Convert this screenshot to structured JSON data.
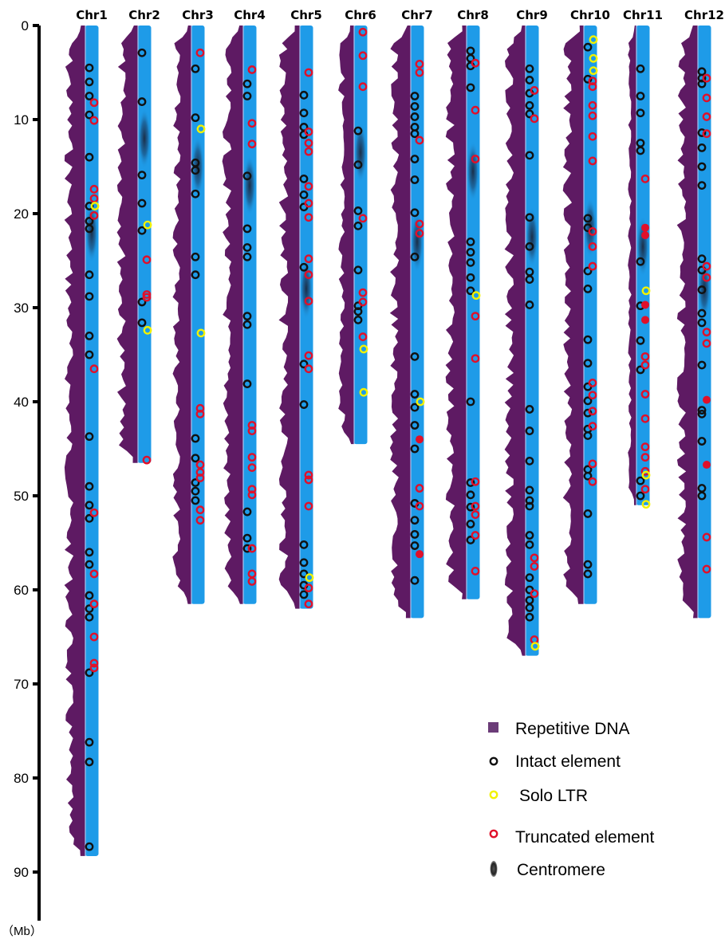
{
  "figure": {
    "axis": {
      "unit": "（Mb）",
      "max": 90,
      "ticks": [
        0,
        10,
        20,
        30,
        40,
        50,
        60,
        70,
        80,
        90
      ]
    },
    "colors": {
      "chromosome": "#1e9be8",
      "repetitive": "#5e1a63",
      "repetitive_legend": "#6b3c78",
      "intact": "#111111",
      "solo": "#f2f200",
      "truncated": "#e0102a",
      "centromere": "#2a2a3a"
    },
    "legend": {
      "repetitive": "Repetitive DNA",
      "intact": "Intact element",
      "solo": "Solo LTR",
      "truncated": "Truncated element",
      "centromere": "Centromere"
    },
    "chromosomes": [
      {
        "name": "Chr1",
        "length_mb": 88.3,
        "centromere_mb": 22.0,
        "rep_max": 1.0,
        "intact": [
          4.5,
          6.0,
          7.5,
          9.5,
          14.0,
          19.2,
          20.8,
          21.6,
          26.5,
          28.8,
          33.0,
          35.0,
          43.7,
          49.0,
          51.0,
          52.4,
          56.0,
          57.3,
          60.6,
          62.0,
          62.9,
          68.8,
          76.2,
          78.3,
          87.3
        ],
        "solo": [
          19.2
        ],
        "truncated": [
          17.4,
          18.4,
          20.2,
          8.2,
          10.1,
          36.5,
          51.8,
          58.3,
          61.5,
          65.0,
          67.8,
          68.3
        ],
        "truncated_filled": []
      },
      {
        "name": "Chr2",
        "length_mb": 46.5,
        "centromere_mb": 12.0,
        "rep_max": 1.0,
        "intact": [
          2.9,
          8.1,
          15.9,
          18.9,
          21.8,
          29.4,
          31.6
        ],
        "solo": [
          21.2,
          32.4
        ],
        "truncated": [
          24.9,
          28.6,
          28.9,
          46.2
        ],
        "truncated_filled": []
      },
      {
        "name": "Chr3",
        "length_mb": 61.5,
        "centromere_mb": 15.0,
        "rep_max": 0.9,
        "intact": [
          4.6,
          9.8,
          14.6,
          15.4,
          17.9,
          24.6,
          26.5,
          43.9,
          46.0,
          48.6,
          49.5,
          50.5
        ],
        "solo": [
          11.0,
          32.7
        ],
        "truncated": [
          2.9,
          40.7,
          41.3,
          46.7,
          47.5,
          48.1,
          51.5,
          52.6
        ],
        "truncated_filled": []
      },
      {
        "name": "Chr4",
        "length_mb": 61.5,
        "centromere_mb": 17.0,
        "rep_max": 1.0,
        "intact": [
          6.2,
          7.5,
          16.0,
          21.6,
          23.6,
          24.6,
          30.9,
          31.8,
          38.1,
          51.7,
          54.5,
          55.6
        ],
        "solo": [],
        "truncated": [
          4.7,
          10.4,
          12.6,
          42.5,
          43.1,
          45.9,
          47.0,
          49.3,
          49.9,
          55.6,
          58.3,
          59.1
        ],
        "truncated_filled": []
      },
      {
        "name": "Chr5",
        "length_mb": 62.0,
        "centromere_mb": 28.0,
        "rep_max": 1.0,
        "intact": [
          7.4,
          9.3,
          10.8,
          11.6,
          16.3,
          18.0,
          19.3,
          25.7,
          36.0,
          40.3,
          55.2,
          57.1,
          58.3,
          59.5,
          60.5
        ],
        "solo": [
          58.7
        ],
        "truncated": [
          5.0,
          11.3,
          12.5,
          13.4,
          17.1,
          18.9,
          20.4,
          24.8,
          26.5,
          29.3,
          35.1,
          36.5,
          47.8,
          48.3,
          51.1,
          59.8,
          61.5
        ],
        "truncated_filled": []
      },
      {
        "name": "Chr6",
        "length_mb": 44.5,
        "centromere_mb": 13.5,
        "rep_max": 0.75,
        "intact": [
          11.2,
          14.8,
          19.7,
          21.3,
          26.0,
          29.8,
          30.4,
          31.3
        ],
        "solo": [
          34.4,
          39.0
        ],
        "truncated": [
          0.7,
          3.2,
          6.5,
          20.5,
          28.4,
          29.4,
          33.1
        ],
        "truncated_filled": []
      },
      {
        "name": "Chr7",
        "length_mb": 63.0,
        "centromere_mb": 23.0,
        "rep_max": 1.0,
        "intact": [
          7.5,
          8.6,
          9.7,
          10.8,
          11.5,
          14.2,
          16.4,
          19.9,
          24.6,
          35.2,
          39.2,
          40.6,
          42.5,
          45.0,
          50.8,
          52.6,
          54.1,
          55.3,
          59.0
        ],
        "solo": [
          40.0
        ],
        "truncated": [
          4.1,
          5.0,
          12.2,
          21.1,
          22.1,
          49.2,
          51.1
        ],
        "truncated_filled": [
          44.0,
          56.2
        ]
      },
      {
        "name": "Chr8",
        "length_mb": 61.0,
        "centromere_mb": 15.5,
        "rep_max": 1.0,
        "intact": [
          2.7,
          3.5,
          4.3,
          6.6,
          23.0,
          24.1,
          25.2,
          26.8,
          28.2,
          40.0,
          48.6,
          49.9,
          51.2,
          53.0,
          54.7
        ],
        "solo": [
          28.7
        ],
        "truncated": [
          4.0,
          9.0,
          14.2,
          30.9,
          35.4,
          48.5,
          51.1,
          52.0,
          54.2,
          58.0
        ],
        "truncated_filled": []
      },
      {
        "name": "Chr9",
        "length_mb": 67.0,
        "centromere_mb": 22.5,
        "rep_max": 1.0,
        "intact": [
          4.6,
          5.8,
          7.2,
          8.5,
          9.4,
          13.8,
          20.4,
          23.5,
          26.2,
          27.0,
          29.7,
          40.8,
          43.1,
          46.3,
          49.4,
          50.5,
          51.1,
          54.2,
          55.2,
          58.7,
          60.0,
          61.1,
          61.9,
          62.9
        ],
        "solo": [
          66.0
        ],
        "truncated": [
          6.9,
          9.9,
          56.6,
          57.5,
          60.4,
          65.3
        ],
        "truncated_filled": []
      },
      {
        "name": "Chr10",
        "length_mb": 61.5,
        "centromere_mb": 21.5,
        "rep_max": 1.0,
        "intact": [
          2.3,
          5.7,
          20.5,
          21.5,
          26.1,
          28.0,
          33.4,
          35.9,
          38.4,
          39.9,
          41.2,
          42.9,
          43.6,
          47.2,
          47.9,
          51.9,
          57.3,
          58.3
        ],
        "solo": [
          1.5,
          3.5,
          4.8
        ],
        "truncated": [
          5.9,
          6.5,
          8.5,
          9.6,
          11.8,
          14.4,
          21.9,
          23.5,
          25.6,
          38.0,
          39.3,
          41.0,
          42.6,
          46.6,
          48.5
        ],
        "truncated_filled": []
      },
      {
        "name": "Chr11",
        "length_mb": 51.0,
        "centromere_mb": 23.5,
        "rep_max": 0.4,
        "intact": [
          4.6,
          7.5,
          9.3,
          12.5,
          13.3,
          25.1,
          29.8,
          33.5,
          36.6,
          48.4,
          50.0
        ],
        "solo": [
          28.2,
          47.8,
          50.9
        ],
        "truncated": [
          16.3,
          35.2,
          36.1,
          39.2,
          41.8,
          44.8,
          45.9,
          47.4,
          49.3
        ],
        "truncated_filled": [
          21.5,
          22.3,
          29.7,
          31.3
        ]
      },
      {
        "name": "Chr12",
        "length_mb": 63.0,
        "centromere_mb": 28.0,
        "rep_max": 1.0,
        "intact": [
          4.9,
          5.6,
          6.2,
          11.4,
          13.0,
          15.0,
          17.0,
          24.8,
          26.0,
          28.1,
          30.6,
          31.6,
          36.1,
          40.9,
          41.3,
          44.2,
          49.2,
          50.0
        ],
        "solo": [],
        "truncated": [
          5.6,
          7.7,
          9.7,
          11.5,
          25.6,
          26.8,
          32.6,
          33.8,
          54.4,
          57.8
        ],
        "truncated_filled": [
          39.8,
          46.7
        ]
      }
    ]
  }
}
